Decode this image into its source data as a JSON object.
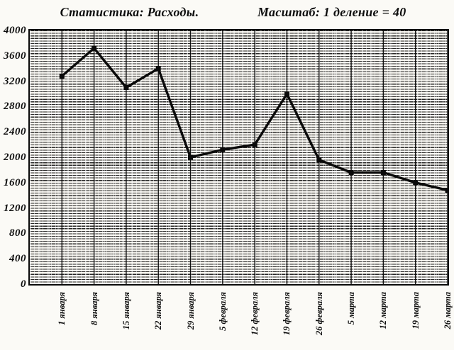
{
  "header": {
    "title": "Статистика: Расходы.",
    "scale_label": "Масштаб: 1 деление = 40"
  },
  "chart_data": {
    "type": "line",
    "title": "Статистика: Расходы.",
    "subtitle": "Масштаб: 1 деление = 40",
    "categories": [
      "1 января",
      "8 января",
      "15 января",
      "22 января",
      "29 января",
      "5 февраля",
      "12 февраля",
      "19 февраля",
      "26 февраля",
      "5 марта",
      "12 марта",
      "19 марта",
      "26 марта"
    ],
    "series": [
      {
        "name": "Расходы",
        "values": [
          3280,
          3720,
          3100,
          3400,
          2000,
          2120,
          2200,
          3000,
          1960,
          1760,
          1760,
          1600,
          1480
        ]
      }
    ],
    "xlabel": "",
    "ylabel": "",
    "ylim": [
      0,
      4000
    ],
    "ytick_step": 400,
    "ytick_labels": [
      "4000",
      "3600",
      "3200",
      "2800",
      "2400",
      "2000",
      "1600",
      "1200",
      "800",
      "400",
      "0"
    ],
    "minor_division": 40,
    "grid": {
      "horizontal_minor_every": 40,
      "vertical_line_per_category": true
    },
    "legend": "none",
    "line_color": "#0a0a0a",
    "marker": "square"
  }
}
